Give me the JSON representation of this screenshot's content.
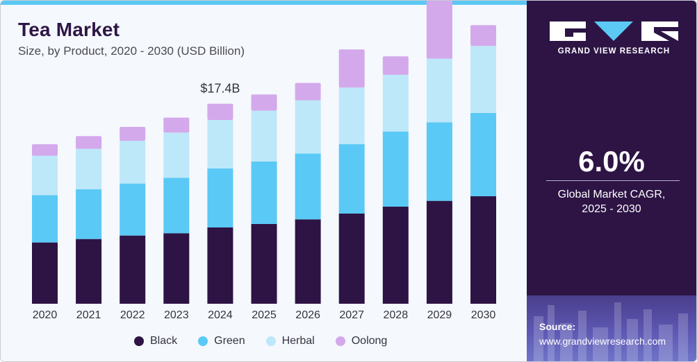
{
  "header": {
    "title": "Tea Market",
    "subtitle": "Size, by Product, 2020 - 2030 (USD Billion)"
  },
  "brand": {
    "name": "GRAND VIEW RESEARCH",
    "icon": "gvr-logo"
  },
  "cagr": {
    "value": "6.0%",
    "label_line1": "Global Market CAGR,",
    "label_line2": "2025 - 2030"
  },
  "source": {
    "label": "Source:",
    "url": "www.grandviewresearch.com"
  },
  "colors": {
    "accent": "#5cc8f4",
    "panel": "#2d1445",
    "Black": "#2d1445",
    "Green": "#5bc9f5",
    "Herbal": "#bde8f9",
    "Oolong": "#d3a9ec"
  },
  "chart_data": {
    "type": "bar",
    "stacked": true,
    "title": "Tea Market",
    "subtitle": "Size, by Product, 2020 - 2030 (USD Billion)",
    "categories": [
      "2020",
      "2021",
      "2022",
      "2023",
      "2024",
      "2025",
      "2026",
      "2027",
      "2028",
      "2029",
      "2030"
    ],
    "series": [
      {
        "name": "Black",
        "values": [
          5.3,
          5.6,
          5.9,
          6.1,
          6.6,
          6.9,
          7.3,
          7.8,
          8.4,
          8.9,
          9.3
        ]
      },
      {
        "name": "Green",
        "values": [
          4.1,
          4.3,
          4.5,
          4.8,
          5.1,
          5.4,
          5.7,
          6.0,
          6.5,
          6.8,
          7.2
        ]
      },
      {
        "name": "Herbal",
        "values": [
          3.4,
          3.5,
          3.7,
          3.9,
          4.2,
          4.4,
          4.6,
          4.9,
          4.9,
          5.5,
          5.8
        ]
      },
      {
        "name": "Oolong",
        "values": [
          1.0,
          1.1,
          1.2,
          1.3,
          1.4,
          1.4,
          1.5,
          3.3,
          1.6,
          5.3,
          1.8
        ]
      }
    ],
    "annotations": [
      {
        "category": "2024",
        "text": "$17.4B"
      }
    ],
    "legend_position": "bottom",
    "grid": false
  }
}
